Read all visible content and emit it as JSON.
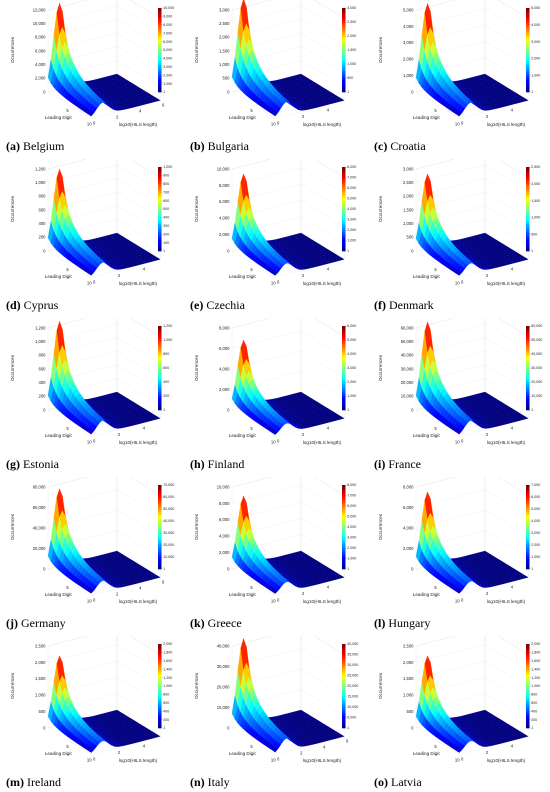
{
  "chart_data": [
    {
      "type": "surface",
      "letter": "(a)",
      "name": "Belgium",
      "ylabel": "Occurrences",
      "xlabel": "Leading Digit",
      "x2label": "log10(HILS length)",
      "z_ticks": [
        "0",
        "2,000",
        "4,000",
        "6,000",
        "8,000",
        "10,000",
        "12,000"
      ],
      "colorbar_ticks": [
        "1",
        "1,000",
        "2,000",
        "3,000",
        "4,000",
        "5,000",
        "6,000",
        "7,000",
        "8,000",
        "9,000",
        "10,000"
      ],
      "x_ticks": [
        "5",
        "10"
      ],
      "x2_ticks": [
        "0",
        "2",
        "4",
        "6"
      ],
      "peak": 12500,
      "zmax": 12000
    },
    {
      "type": "surface",
      "letter": "(b)",
      "name": "Bulgaria",
      "ylabel": "Occurrences",
      "xlabel": "Leading Digit",
      "x2label": "log10(HILS length)",
      "z_ticks": [
        "0",
        "500",
        "1,000",
        "1,500",
        "2,000",
        "2,500",
        "3,000"
      ],
      "colorbar_ticks": [
        "1",
        "500",
        "1,000",
        "1,500",
        "2,000",
        "2,500",
        "3,000"
      ],
      "x_ticks": [
        "5",
        "10"
      ],
      "x2_ticks": [
        "0",
        "2",
        "4"
      ],
      "peak": 3300,
      "zmax": 3000
    },
    {
      "type": "surface",
      "letter": "(c)",
      "name": "Croatia",
      "ylabel": "Occurrences",
      "xlabel": "Leading Digit",
      "x2label": "log10(HILS length)",
      "z_ticks": [
        "0",
        "1,000",
        "2,000",
        "3,000",
        "4,000",
        "5,000"
      ],
      "colorbar_ticks": [
        "1",
        "1,000",
        "2,000",
        "3,000",
        "4,000",
        "5,000"
      ],
      "x_ticks": [
        "5",
        "10"
      ],
      "x2_ticks": [
        "0",
        "2",
        "4"
      ],
      "peak": 5200,
      "zmax": 5000
    },
    {
      "type": "surface",
      "letter": "(d)",
      "name": "Cyprus",
      "ylabel": "Occurrences",
      "xlabel": "Leading Digit",
      "x2label": "log10(HILS length)",
      "z_ticks": [
        "0",
        "200",
        "400",
        "600",
        "800",
        "1,000",
        "1,200"
      ],
      "colorbar_ticks": [
        "1",
        "100",
        "200",
        "300",
        "400",
        "500",
        "600",
        "700",
        "800",
        "900",
        "1,000"
      ],
      "x_ticks": [
        "5",
        "10"
      ],
      "x2_ticks": [
        "0",
        "2",
        "4"
      ],
      "peak": 1150,
      "zmax": 1200
    },
    {
      "type": "surface",
      "letter": "(e)",
      "name": "Czechia",
      "ylabel": "Occurrences",
      "xlabel": "Leading Digit",
      "x2label": "log10(HILS length)",
      "z_ticks": [
        "0",
        "2,000",
        "4,000",
        "6,000",
        "8,000",
        "10,000"
      ],
      "colorbar_ticks": [
        "1",
        "1,000",
        "2,000",
        "3,000",
        "4,000",
        "5,000",
        "6,000",
        "7,000",
        "8,000"
      ],
      "x_ticks": [
        "5",
        "10"
      ],
      "x2_ticks": [
        "0",
        "2",
        "4"
      ],
      "peak": 9000,
      "zmax": 10000
    },
    {
      "type": "surface",
      "letter": "(f)",
      "name": "Denmark",
      "ylabel": "Occurrences",
      "xlabel": "Leading Digit",
      "x2label": "log10(HILS length)",
      "z_ticks": [
        "0",
        "500",
        "1,000",
        "1,500",
        "2,000",
        "2,500",
        "3,000"
      ],
      "colorbar_ticks": [
        "1",
        "500",
        "1,000",
        "1,500",
        "2,000",
        "2,500"
      ],
      "x_ticks": [
        "5",
        "10"
      ],
      "x2_ticks": [
        "0",
        "2",
        "4"
      ],
      "peak": 2700,
      "zmax": 3000
    },
    {
      "type": "surface",
      "letter": "(g)",
      "name": "Estonia",
      "ylabel": "Occurrences",
      "xlabel": "Leading Digit",
      "x2label": "log10(HILS length)",
      "z_ticks": [
        "0",
        "200",
        "400",
        "600",
        "800",
        "1,000",
        "1,200"
      ],
      "colorbar_ticks": [
        "1",
        "200",
        "400",
        "600",
        "800",
        "1,000",
        "1,200"
      ],
      "x_ticks": [
        "5",
        "10"
      ],
      "x2_ticks": [
        "0",
        "2",
        "4"
      ],
      "peak": 1250,
      "zmax": 1200
    },
    {
      "type": "surface",
      "letter": "(h)",
      "name": "Finland",
      "ylabel": "Occurrences",
      "xlabel": "Leading Digit",
      "x2label": "log10(HILS length)",
      "z_ticks": [
        "0",
        "2,000",
        "4,000",
        "6,000",
        "8,000"
      ],
      "colorbar_ticks": [
        "1",
        "1,000",
        "2,000",
        "3,000",
        "4,000",
        "5,000",
        "6,000"
      ],
      "x_ticks": [
        "5",
        "10"
      ],
      "x2_ticks": [
        "0",
        "2",
        "4"
      ],
      "peak": 6500,
      "zmax": 8000
    },
    {
      "type": "surface",
      "letter": "(i)",
      "name": "France",
      "ylabel": "Occurrences",
      "xlabel": "Leading Digit",
      "x2label": "log10(HILS length)",
      "z_ticks": [
        "0",
        "10,000",
        "20,000",
        "30,000",
        "40,000",
        "50,000",
        "60,000"
      ],
      "colorbar_ticks": [
        "1",
        "10,000",
        "20,000",
        "30,000",
        "40,000",
        "50,000",
        "60,000"
      ],
      "x_ticks": [
        "5",
        "10"
      ],
      "x2_ticks": [
        "0",
        "2",
        "4"
      ],
      "peak": 62000,
      "zmax": 60000
    },
    {
      "type": "surface",
      "letter": "(j)",
      "name": "Germany",
      "ylabel": "Occurrences",
      "xlabel": "Leading Digit",
      "x2label": "log10(HILS length)",
      "z_ticks": [
        "0",
        "20,000",
        "40,000",
        "60,000",
        "80,000"
      ],
      "colorbar_ticks": [
        "1",
        "10,000",
        "20,000",
        "30,000",
        "40,000",
        "50,000",
        "60,000",
        "70,000"
      ],
      "x_ticks": [
        "5",
        "10"
      ],
      "x2_ticks": [
        "0",
        "2",
        "4",
        "6"
      ],
      "peak": 75000,
      "zmax": 80000
    },
    {
      "type": "surface",
      "letter": "(k)",
      "name": "Greece",
      "ylabel": "Occurrences",
      "xlabel": "Leading Digit",
      "x2label": "log10(HILS length)",
      "z_ticks": [
        "0",
        "2,000",
        "4,000",
        "6,000",
        "8,000",
        "10,000"
      ],
      "colorbar_ticks": [
        "1",
        "1,000",
        "2,000",
        "3,000",
        "4,000",
        "5,000",
        "6,000",
        "7,000",
        "8,000"
      ],
      "x_ticks": [
        "5",
        "10"
      ],
      "x2_ticks": [
        "0",
        "2",
        "4"
      ],
      "peak": 8500,
      "zmax": 10000
    },
    {
      "type": "surface",
      "letter": "(l)",
      "name": "Hungary",
      "ylabel": "Occurrences",
      "xlabel": "Leading Digit",
      "x2label": "log10(HILS length)",
      "z_ticks": [
        "0",
        "2,000",
        "4,000",
        "6,000",
        "8,000"
      ],
      "colorbar_ticks": [
        "1",
        "1,000",
        "2,000",
        "3,000",
        "4,000",
        "5,000",
        "6,000",
        "7,000"
      ],
      "x_ticks": [
        "5",
        "10"
      ],
      "x2_ticks": [
        "0",
        "2",
        "4"
      ],
      "peak": 7200,
      "zmax": 8000
    },
    {
      "type": "surface",
      "letter": "(m)",
      "name": "Ireland",
      "ylabel": "Occurrences",
      "xlabel": "Leading Digit",
      "x2label": "log10(HILS length)",
      "z_ticks": [
        "0",
        "500",
        "1,000",
        "1,500",
        "2,000",
        "2,500"
      ],
      "colorbar_ticks": [
        "1",
        "200",
        "400",
        "600",
        "800",
        "1,000",
        "1,200",
        "1,400",
        "1,600",
        "1,800",
        "2,000"
      ],
      "x_ticks": [
        "5",
        "10"
      ],
      "x2_ticks": [
        "0",
        "2",
        "4"
      ],
      "peak": 2100,
      "zmax": 2500
    },
    {
      "type": "surface",
      "letter": "(n)",
      "name": "Italy",
      "ylabel": "Occurrences",
      "xlabel": "Leading Digit",
      "x2label": "log10(HILS length)",
      "z_ticks": [
        "0",
        "10,000",
        "20,000",
        "30,000",
        "40,000"
      ],
      "colorbar_ticks": [
        "1",
        "5,000",
        "10,000",
        "15,000",
        "20,000",
        "25,000",
        "30,000",
        "35,000",
        "40,000"
      ],
      "x_ticks": [
        "5",
        "10"
      ],
      "x2_ticks": [
        "0",
        "2",
        "4",
        "6"
      ],
      "peak": 42000,
      "zmax": 40000
    },
    {
      "type": "surface",
      "letter": "(o)",
      "name": "Latvia",
      "ylabel": "Occurrences",
      "xlabel": "Leading Digit",
      "x2label": "log10(HILS length)",
      "z_ticks": [
        "0",
        "500",
        "1,000",
        "1,500",
        "2,000",
        "2,500"
      ],
      "colorbar_ticks": [
        "1",
        "200",
        "400",
        "600",
        "800",
        "1,000",
        "1,200",
        "1,400",
        "1,600",
        "1,800",
        "2,000"
      ],
      "x_ticks": [
        "5",
        "10"
      ],
      "x2_ticks": [
        "0",
        "2",
        "4"
      ],
      "peak": 2100,
      "zmax": 2500
    }
  ]
}
